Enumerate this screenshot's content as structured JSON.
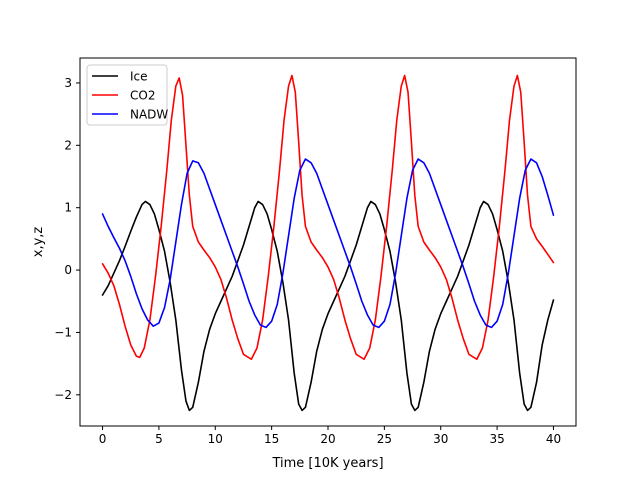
{
  "chart_data": {
    "type": "line",
    "title": "",
    "xlabel": "Time [10K years]",
    "ylabel": "x,y,z",
    "xlim": [
      -2,
      42
    ],
    "ylim": [
      -2.5,
      3.4
    ],
    "xticks": [
      0,
      5,
      10,
      15,
      20,
      25,
      30,
      35,
      40
    ],
    "yticks": [
      -2,
      -1,
      0,
      1,
      2,
      3
    ],
    "ytick_labels": [
      "−2",
      "−1",
      "0",
      "1",
      "2",
      "3"
    ],
    "grid": false,
    "legend": "top-left",
    "series": [
      {
        "name": "Ice",
        "color": "#000000",
        "points": [
          [
            0,
            -0.4
          ],
          [
            0.5,
            -0.25
          ],
          [
            1,
            -0.05
          ],
          [
            1.5,
            0.15
          ],
          [
            2,
            0.38
          ],
          [
            2.5,
            0.62
          ],
          [
            3,
            0.85
          ],
          [
            3.5,
            1.05
          ],
          [
            3.8,
            1.1
          ],
          [
            4.2,
            1.05
          ],
          [
            4.6,
            0.9
          ],
          [
            5,
            0.65
          ],
          [
            5.5,
            0.3
          ],
          [
            6,
            -0.2
          ],
          [
            6.5,
            -0.8
          ],
          [
            7,
            -1.6
          ],
          [
            7.4,
            -2.1
          ],
          [
            7.7,
            -2.25
          ],
          [
            8,
            -2.2
          ],
          [
            8.5,
            -1.8
          ],
          [
            9,
            -1.3
          ],
          [
            9.5,
            -0.95
          ],
          [
            10,
            -0.7
          ],
          [
            10.5,
            -0.5
          ],
          [
            11,
            -0.3
          ],
          [
            11.5,
            -0.1
          ],
          [
            12,
            0.15
          ],
          [
            12.5,
            0.4
          ],
          [
            13,
            0.7
          ],
          [
            13.5,
            1.0
          ],
          [
            13.8,
            1.1
          ],
          [
            14.2,
            1.05
          ],
          [
            14.6,
            0.9
          ],
          [
            15,
            0.65
          ],
          [
            15.5,
            0.3
          ],
          [
            16,
            -0.2
          ],
          [
            16.5,
            -0.8
          ],
          [
            17,
            -1.65
          ],
          [
            17.4,
            -2.15
          ],
          [
            17.7,
            -2.25
          ],
          [
            18,
            -2.2
          ],
          [
            18.5,
            -1.8
          ],
          [
            19,
            -1.3
          ],
          [
            19.5,
            -0.95
          ],
          [
            20,
            -0.7
          ],
          [
            20.5,
            -0.5
          ],
          [
            21,
            -0.3
          ],
          [
            21.5,
            -0.1
          ],
          [
            22,
            0.15
          ],
          [
            22.5,
            0.4
          ],
          [
            23,
            0.7
          ],
          [
            23.5,
            1.0
          ],
          [
            23.8,
            1.1
          ],
          [
            24.2,
            1.05
          ],
          [
            24.6,
            0.9
          ],
          [
            25,
            0.65
          ],
          [
            25.5,
            0.3
          ],
          [
            26,
            -0.2
          ],
          [
            26.5,
            -0.8
          ],
          [
            27,
            -1.65
          ],
          [
            27.4,
            -2.15
          ],
          [
            27.7,
            -2.25
          ],
          [
            28,
            -2.2
          ],
          [
            28.5,
            -1.8
          ],
          [
            29,
            -1.3
          ],
          [
            29.5,
            -0.95
          ],
          [
            30,
            -0.7
          ],
          [
            30.5,
            -0.5
          ],
          [
            31,
            -0.3
          ],
          [
            31.5,
            -0.1
          ],
          [
            32,
            0.15
          ],
          [
            32.5,
            0.4
          ],
          [
            33,
            0.7
          ],
          [
            33.5,
            1.0
          ],
          [
            33.8,
            1.1
          ],
          [
            34.2,
            1.05
          ],
          [
            34.6,
            0.9
          ],
          [
            35,
            0.65
          ],
          [
            35.5,
            0.3
          ],
          [
            36,
            -0.2
          ],
          [
            36.5,
            -0.8
          ],
          [
            37,
            -1.65
          ],
          [
            37.4,
            -2.15
          ],
          [
            37.7,
            -2.25
          ],
          [
            38,
            -2.2
          ],
          [
            38.5,
            -1.8
          ],
          [
            39,
            -1.2
          ],
          [
            39.5,
            -0.8
          ],
          [
            40,
            -0.48
          ]
        ]
      },
      {
        "name": "CO2",
        "color": "#ff0000",
        "points": [
          [
            0,
            0.1
          ],
          [
            0.5,
            -0.05
          ],
          [
            1,
            -0.25
          ],
          [
            1.5,
            -0.55
          ],
          [
            2,
            -0.9
          ],
          [
            2.5,
            -1.2
          ],
          [
            3,
            -1.38
          ],
          [
            3.3,
            -1.4
          ],
          [
            3.7,
            -1.25
          ],
          [
            4.2,
            -0.8
          ],
          [
            4.7,
            -0.1
          ],
          [
            5.2,
            0.7
          ],
          [
            5.7,
            1.6
          ],
          [
            6.1,
            2.4
          ],
          [
            6.5,
            2.95
          ],
          [
            6.8,
            3.08
          ],
          [
            7.1,
            2.8
          ],
          [
            7.4,
            2.0
          ],
          [
            7.7,
            1.2
          ],
          [
            8,
            0.7
          ],
          [
            8.5,
            0.45
          ],
          [
            9,
            0.32
          ],
          [
            9.5,
            0.2
          ],
          [
            10,
            0.05
          ],
          [
            10.5,
            -0.15
          ],
          [
            11,
            -0.45
          ],
          [
            11.5,
            -0.8
          ],
          [
            12,
            -1.1
          ],
          [
            12.5,
            -1.35
          ],
          [
            13.2,
            -1.43
          ],
          [
            13.7,
            -1.25
          ],
          [
            14.2,
            -0.8
          ],
          [
            14.7,
            -0.1
          ],
          [
            15.2,
            0.7
          ],
          [
            15.7,
            1.6
          ],
          [
            16.1,
            2.4
          ],
          [
            16.5,
            2.95
          ],
          [
            16.8,
            3.12
          ],
          [
            17.1,
            2.85
          ],
          [
            17.4,
            2.05
          ],
          [
            17.7,
            1.2
          ],
          [
            18,
            0.7
          ],
          [
            18.5,
            0.45
          ],
          [
            19,
            0.32
          ],
          [
            19.5,
            0.2
          ],
          [
            20,
            0.05
          ],
          [
            20.5,
            -0.15
          ],
          [
            21,
            -0.45
          ],
          [
            21.5,
            -0.8
          ],
          [
            22,
            -1.1
          ],
          [
            22.5,
            -1.35
          ],
          [
            23.2,
            -1.43
          ],
          [
            23.7,
            -1.25
          ],
          [
            24.2,
            -0.8
          ],
          [
            24.7,
            -0.1
          ],
          [
            25.2,
            0.7
          ],
          [
            25.7,
            1.6
          ],
          [
            26.1,
            2.4
          ],
          [
            26.5,
            2.95
          ],
          [
            26.8,
            3.12
          ],
          [
            27.1,
            2.85
          ],
          [
            27.4,
            2.05
          ],
          [
            27.7,
            1.2
          ],
          [
            28,
            0.7
          ],
          [
            28.5,
            0.45
          ],
          [
            29,
            0.32
          ],
          [
            29.5,
            0.2
          ],
          [
            30,
            0.05
          ],
          [
            30.5,
            -0.15
          ],
          [
            31,
            -0.45
          ],
          [
            31.5,
            -0.8
          ],
          [
            32,
            -1.1
          ],
          [
            32.5,
            -1.35
          ],
          [
            33.2,
            -1.43
          ],
          [
            33.7,
            -1.25
          ],
          [
            34.2,
            -0.8
          ],
          [
            34.7,
            -0.1
          ],
          [
            35.2,
            0.7
          ],
          [
            35.7,
            1.6
          ],
          [
            36.1,
            2.4
          ],
          [
            36.5,
            2.95
          ],
          [
            36.8,
            3.12
          ],
          [
            37.1,
            2.85
          ],
          [
            37.4,
            2.05
          ],
          [
            37.7,
            1.2
          ],
          [
            38,
            0.7
          ],
          [
            38.5,
            0.5
          ],
          [
            39,
            0.38
          ],
          [
            39.5,
            0.25
          ],
          [
            40,
            0.12
          ]
        ]
      },
      {
        "name": "NADW",
        "color": "#0000ff",
        "points": [
          [
            0,
            0.9
          ],
          [
            0.5,
            0.7
          ],
          [
            1,
            0.52
          ],
          [
            1.5,
            0.35
          ],
          [
            2,
            0.15
          ],
          [
            2.5,
            -0.1
          ],
          [
            3,
            -0.38
          ],
          [
            3.5,
            -0.62
          ],
          [
            4,
            -0.8
          ],
          [
            4.5,
            -0.9
          ],
          [
            5,
            -0.85
          ],
          [
            5.5,
            -0.6
          ],
          [
            6,
            -0.15
          ],
          [
            6.5,
            0.45
          ],
          [
            7,
            1.05
          ],
          [
            7.5,
            1.55
          ],
          [
            8,
            1.75
          ],
          [
            8.5,
            1.72
          ],
          [
            9,
            1.55
          ],
          [
            9.5,
            1.3
          ],
          [
            10,
            1.05
          ],
          [
            10.5,
            0.8
          ],
          [
            11,
            0.55
          ],
          [
            11.5,
            0.3
          ],
          [
            12,
            0.05
          ],
          [
            12.5,
            -0.22
          ],
          [
            13,
            -0.5
          ],
          [
            13.5,
            -0.72
          ],
          [
            14,
            -0.88
          ],
          [
            14.5,
            -0.92
          ],
          [
            15,
            -0.82
          ],
          [
            15.5,
            -0.55
          ],
          [
            16,
            -0.05
          ],
          [
            16.5,
            0.55
          ],
          [
            17,
            1.15
          ],
          [
            17.5,
            1.6
          ],
          [
            18,
            1.78
          ],
          [
            18.5,
            1.72
          ],
          [
            19,
            1.55
          ],
          [
            19.5,
            1.3
          ],
          [
            20,
            1.05
          ],
          [
            20.5,
            0.8
          ],
          [
            21,
            0.55
          ],
          [
            21.5,
            0.3
          ],
          [
            22,
            0.05
          ],
          [
            22.5,
            -0.22
          ],
          [
            23,
            -0.5
          ],
          [
            23.5,
            -0.72
          ],
          [
            24,
            -0.88
          ],
          [
            24.5,
            -0.92
          ],
          [
            25,
            -0.82
          ],
          [
            25.5,
            -0.55
          ],
          [
            26,
            -0.05
          ],
          [
            26.5,
            0.55
          ],
          [
            27,
            1.15
          ],
          [
            27.5,
            1.6
          ],
          [
            28,
            1.78
          ],
          [
            28.5,
            1.72
          ],
          [
            29,
            1.55
          ],
          [
            29.5,
            1.3
          ],
          [
            30,
            1.05
          ],
          [
            30.5,
            0.8
          ],
          [
            31,
            0.55
          ],
          [
            31.5,
            0.3
          ],
          [
            32,
            0.05
          ],
          [
            32.5,
            -0.22
          ],
          [
            33,
            -0.5
          ],
          [
            33.5,
            -0.72
          ],
          [
            34,
            -0.88
          ],
          [
            34.5,
            -0.92
          ],
          [
            35,
            -0.82
          ],
          [
            35.5,
            -0.55
          ],
          [
            36,
            -0.05
          ],
          [
            36.5,
            0.55
          ],
          [
            37,
            1.15
          ],
          [
            37.5,
            1.6
          ],
          [
            38,
            1.78
          ],
          [
            38.5,
            1.72
          ],
          [
            39,
            1.5
          ],
          [
            39.5,
            1.2
          ],
          [
            40,
            0.88
          ]
        ]
      }
    ]
  }
}
